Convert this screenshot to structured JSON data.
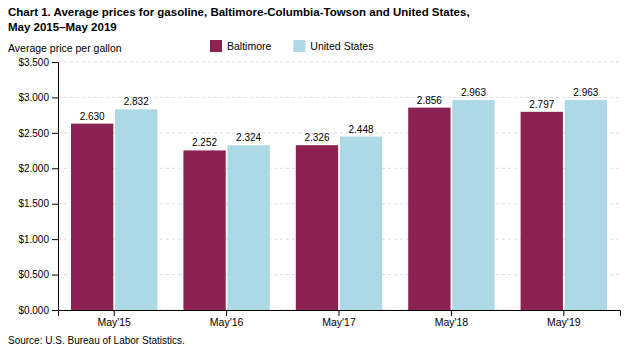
{
  "chart_data": {
    "type": "bar",
    "title": "Chart 1. Average prices for gasoline, Baltimore-Columbia-Towson and United States,",
    "subtitle": "May 2015–May 2019",
    "y_label": "Average price per gallon",
    "annotations": [
      "Source: U.S. Bureau of Labor Statistics."
    ],
    "categories": [
      "May'15",
      "May'16",
      "May'17",
      "May'18",
      "May'19"
    ],
    "series": [
      {
        "name": "Baltimore",
        "color": "#8B2252",
        "values": [
          2.63,
          2.252,
          2.326,
          2.856,
          2.797
        ],
        "value_labels": [
          "2.630",
          "2.252",
          "2.326",
          "2.856",
          "2.797"
        ]
      },
      {
        "name": "United States",
        "color": "#ADD8E6",
        "values": [
          2.832,
          2.324,
          2.448,
          2.963,
          2.963
        ],
        "value_labels": [
          "2.832",
          "2.324",
          "2.448",
          "2.963",
          "2.963"
        ]
      }
    ],
    "ylim": [
      0,
      3.5
    ],
    "yticks": [
      {
        "value": 0.0,
        "label": "$0.000"
      },
      {
        "value": 0.5,
        "label": "$0.500"
      },
      {
        "value": 1.0,
        "label": "$1.000"
      },
      {
        "value": 1.5,
        "label": "$1.500"
      },
      {
        "value": 2.0,
        "label": "$2.000"
      },
      {
        "value": 2.5,
        "label": "$2.500"
      },
      {
        "value": 3.0,
        "label": "$3.000"
      },
      {
        "value": 3.5,
        "label": "$3.500"
      }
    ],
    "grid": true,
    "legend": "top",
    "data_labels": true
  }
}
